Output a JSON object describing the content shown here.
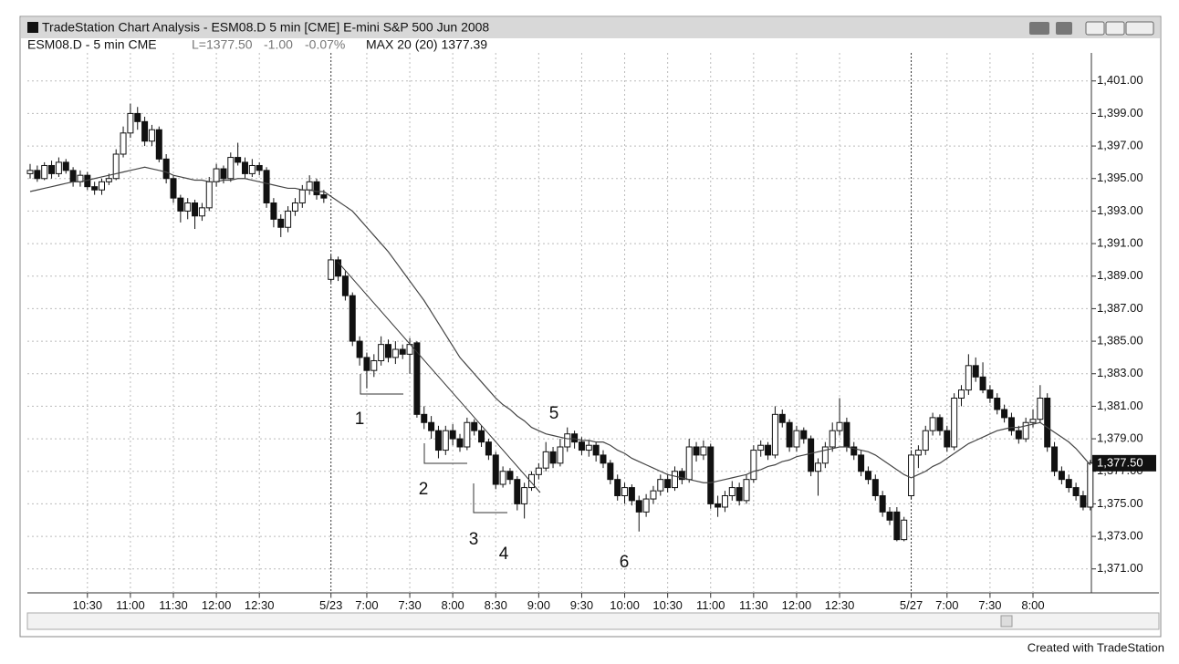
{
  "window": {
    "title": "TradeStation Chart Analysis - ESM08.D 5 min [CME] E-mini S&P 500 Jun 2008"
  },
  "footer": "Created with TradeStation",
  "chart_data": {
    "type": "candlestick",
    "symbol_label": "ESM08.D - 5 min CME",
    "last_label": "L=1377.50",
    "change_label": "-1.00",
    "change_pct_label": "-0.07%",
    "indicator_label": "MAX 20 (20) 1377.39",
    "last_price_label": "1,377.50",
    "categories": [
      null,
      null,
      null,
      null,
      null,
      null,
      null,
      null,
      "10:30",
      null,
      null,
      null,
      null,
      null,
      "11:00",
      null,
      null,
      null,
      null,
      null,
      "11:30",
      null,
      null,
      null,
      null,
      null,
      "12:00",
      null,
      null,
      null,
      null,
      null,
      "12:30",
      null,
      null,
      null,
      null,
      null,
      null,
      null,
      null,
      null,
      "5/23",
      null,
      null,
      null,
      null,
      "7:00",
      null,
      null,
      null,
      null,
      null,
      "7:30",
      null,
      null,
      null,
      null,
      null,
      "8:00",
      null,
      null,
      null,
      null,
      null,
      "8:30",
      null,
      null,
      null,
      null,
      null,
      "9:00",
      null,
      null,
      null,
      null,
      null,
      "9:30",
      null,
      null,
      null,
      null,
      null,
      "10:00",
      null,
      null,
      null,
      null,
      null,
      "10:30",
      null,
      null,
      null,
      null,
      null,
      "11:00",
      null,
      null,
      null,
      null,
      null,
      "11:30",
      null,
      null,
      null,
      null,
      null,
      "12:00",
      null,
      null,
      null,
      null,
      null,
      "12:30",
      null,
      null,
      null,
      null,
      null,
      null,
      null,
      null,
      null,
      "5/27",
      null,
      null,
      null,
      null,
      "7:00",
      null,
      null,
      null,
      null,
      null,
      "7:30",
      null,
      null,
      null,
      null,
      null,
      "8:00",
      null,
      null,
      null,
      null,
      null,
      null,
      null,
      null
    ],
    "ohlc": [
      [
        1395.3,
        1395.9,
        1395.0,
        1395.5
      ],
      [
        1395.5,
        1395.8,
        1394.8,
        1395.0
      ],
      [
        1395.0,
        1396.0,
        1394.9,
        1395.8
      ],
      [
        1395.8,
        1396.1,
        1395.0,
        1395.3
      ],
      [
        1395.3,
        1396.3,
        1395.1,
        1396.0
      ],
      [
        1396.0,
        1396.2,
        1395.3,
        1395.5
      ],
      [
        1395.5,
        1395.7,
        1394.5,
        1394.8
      ],
      [
        1394.8,
        1395.5,
        1394.5,
        1395.2
      ],
      [
        1395.2,
        1395.4,
        1394.3,
        1394.5
      ],
      [
        1394.5,
        1394.8,
        1394.0,
        1394.3
      ],
      [
        1394.3,
        1395.0,
        1394.0,
        1394.8
      ],
      [
        1394.8,
        1395.3,
        1394.6,
        1395.0
      ],
      [
        1395.0,
        1396.8,
        1394.9,
        1396.5
      ],
      [
        1396.5,
        1398.2,
        1396.3,
        1397.8
      ],
      [
        1397.8,
        1399.6,
        1397.5,
        1399.0
      ],
      [
        1399.0,
        1399.4,
        1398.0,
        1398.5
      ],
      [
        1398.5,
        1398.8,
        1397.0,
        1397.3
      ],
      [
        1397.3,
        1398.3,
        1397.0,
        1398.0
      ],
      [
        1398.0,
        1398.2,
        1396.0,
        1396.2
      ],
      [
        1396.2,
        1396.5,
        1394.7,
        1395.0
      ],
      [
        1395.0,
        1395.2,
        1393.5,
        1393.8
      ],
      [
        1393.8,
        1394.0,
        1392.3,
        1393.0
      ],
      [
        1393.0,
        1393.8,
        1392.5,
        1393.5
      ],
      [
        1393.5,
        1393.7,
        1391.9,
        1392.7
      ],
      [
        1392.7,
        1393.5,
        1392.4,
        1393.2
      ],
      [
        1393.2,
        1395.1,
        1393.0,
        1394.8
      ],
      [
        1394.8,
        1395.9,
        1394.5,
        1395.6
      ],
      [
        1395.6,
        1395.8,
        1394.7,
        1395.0
      ],
      [
        1395.0,
        1396.6,
        1394.8,
        1396.3
      ],
      [
        1396.3,
        1397.2,
        1395.8,
        1396.0
      ],
      [
        1396.0,
        1396.3,
        1395.0,
        1395.3
      ],
      [
        1395.3,
        1396.2,
        1395.1,
        1395.8
      ],
      [
        1395.8,
        1396.0,
        1395.2,
        1395.5
      ],
      [
        1395.5,
        1395.7,
        1393.2,
        1393.5
      ],
      [
        1393.5,
        1393.8,
        1392.0,
        1392.5
      ],
      [
        1392.5,
        1392.8,
        1391.4,
        1392.0
      ],
      [
        1392.0,
        1393.3,
        1391.7,
        1393.0
      ],
      [
        1393.0,
        1393.8,
        1392.7,
        1393.5
      ],
      [
        1393.5,
        1394.6,
        1393.2,
        1394.3
      ],
      [
        1394.3,
        1395.2,
        1394.0,
        1394.8
      ],
      [
        1394.8,
        1395.0,
        1393.7,
        1394.0
      ],
      [
        1394.0,
        1394.3,
        1393.5,
        1393.8
      ],
      [
        1388.8,
        1390.3,
        1388.6,
        1390.0
      ],
      [
        1390.0,
        1390.2,
        1388.7,
        1389.0
      ],
      [
        1389.0,
        1389.3,
        1387.5,
        1387.8
      ],
      [
        1387.8,
        1388.0,
        1384.7,
        1385.0
      ],
      [
        1385.0,
        1385.3,
        1383.5,
        1384.0
      ],
      [
        1384.0,
        1384.3,
        1382.1,
        1383.2
      ],
      [
        1383.2,
        1384.2,
        1382.8,
        1383.8
      ],
      [
        1383.8,
        1385.3,
        1383.5,
        1384.8
      ],
      [
        1384.8,
        1385.1,
        1383.7,
        1384.0
      ],
      [
        1384.0,
        1385.0,
        1383.6,
        1384.5
      ],
      [
        1384.5,
        1384.8,
        1383.9,
        1384.2
      ],
      [
        1384.2,
        1385.2,
        1383.0,
        1384.8
      ],
      [
        1384.9,
        1385.0,
        1380.3,
        1380.5
      ],
      [
        1380.5,
        1381.0,
        1379.6,
        1380.0
      ],
      [
        1380.0,
        1380.4,
        1379.0,
        1379.5
      ],
      [
        1379.5,
        1379.8,
        1377.8,
        1378.3
      ],
      [
        1378.3,
        1379.8,
        1378.0,
        1379.5
      ],
      [
        1379.5,
        1379.9,
        1378.6,
        1379.0
      ],
      [
        1379.0,
        1379.3,
        1378.2,
        1378.5
      ],
      [
        1378.5,
        1380.3,
        1378.3,
        1380.0
      ],
      [
        1380.0,
        1380.2,
        1379.2,
        1379.5
      ],
      [
        1379.5,
        1379.8,
        1378.5,
        1378.8
      ],
      [
        1378.8,
        1379.0,
        1377.7,
        1378.0
      ],
      [
        1378.0,
        1378.2,
        1375.9,
        1376.2
      ],
      [
        1376.2,
        1377.3,
        1376.0,
        1377.0
      ],
      [
        1377.0,
        1377.2,
        1376.2,
        1376.5
      ],
      [
        1376.5,
        1376.7,
        1374.6,
        1375.0
      ],
      [
        1375.0,
        1376.3,
        1374.1,
        1376.0
      ],
      [
        1376.0,
        1377.0,
        1375.8,
        1376.8
      ],
      [
        1376.8,
        1377.5,
        1376.5,
        1377.2
      ],
      [
        1377.2,
        1378.8,
        1377.0,
        1378.2
      ],
      [
        1378.2,
        1378.5,
        1377.2,
        1377.5
      ],
      [
        1377.5,
        1379.0,
        1377.3,
        1378.5
      ],
      [
        1378.5,
        1379.7,
        1378.2,
        1379.3
      ],
      [
        1379.3,
        1379.5,
        1378.4,
        1378.8
      ],
      [
        1378.8,
        1379.1,
        1378.0,
        1378.3
      ],
      [
        1378.3,
        1378.9,
        1377.9,
        1378.6
      ],
      [
        1378.6,
        1378.8,
        1377.6,
        1378.0
      ],
      [
        1378.0,
        1378.3,
        1377.2,
        1377.5
      ],
      [
        1377.5,
        1377.7,
        1376.2,
        1376.5
      ],
      [
        1376.5,
        1376.8,
        1375.2,
        1375.5
      ],
      [
        1375.5,
        1376.3,
        1375.0,
        1376.0
      ],
      [
        1376.0,
        1376.2,
        1374.9,
        1375.2
      ],
      [
        1375.2,
        1375.5,
        1373.3,
        1374.5
      ],
      [
        1374.5,
        1375.6,
        1374.2,
        1375.3
      ],
      [
        1375.3,
        1376.1,
        1375.0,
        1375.8
      ],
      [
        1375.8,
        1376.8,
        1375.5,
        1376.5
      ],
      [
        1376.5,
        1376.8,
        1375.7,
        1376.0
      ],
      [
        1376.0,
        1377.3,
        1375.8,
        1377.0
      ],
      [
        1377.0,
        1377.2,
        1376.2,
        1376.5
      ],
      [
        1376.5,
        1379.0,
        1376.3,
        1378.5
      ],
      [
        1378.5,
        1378.8,
        1377.6,
        1378.0
      ],
      [
        1378.0,
        1378.9,
        1377.7,
        1378.5
      ],
      [
        1378.5,
        1378.7,
        1374.7,
        1375.0
      ],
      [
        1375.0,
        1375.5,
        1374.2,
        1374.8
      ],
      [
        1374.8,
        1375.8,
        1374.5,
        1375.5
      ],
      [
        1375.5,
        1376.4,
        1375.2,
        1376.0
      ],
      [
        1376.0,
        1376.3,
        1374.9,
        1375.2
      ],
      [
        1375.2,
        1376.8,
        1375.0,
        1376.5
      ],
      [
        1376.5,
        1378.6,
        1376.3,
        1378.3
      ],
      [
        1378.3,
        1378.9,
        1377.9,
        1378.6
      ],
      [
        1378.6,
        1378.8,
        1377.7,
        1378.0
      ],
      [
        1378.0,
        1381.0,
        1377.8,
        1380.5
      ],
      [
        1380.5,
        1380.8,
        1379.7,
        1380.0
      ],
      [
        1380.0,
        1380.2,
        1378.2,
        1378.5
      ],
      [
        1378.5,
        1379.8,
        1378.2,
        1379.5
      ],
      [
        1379.5,
        1379.7,
        1378.7,
        1379.0
      ],
      [
        1379.0,
        1379.2,
        1376.7,
        1377.0
      ],
      [
        1377.0,
        1377.8,
        1375.5,
        1377.5
      ],
      [
        1377.5,
        1378.8,
        1377.2,
        1378.5
      ],
      [
        1378.5,
        1380.0,
        1378.2,
        1379.5
      ],
      [
        1379.5,
        1381.5,
        1379.2,
        1380.0
      ],
      [
        1380.0,
        1380.3,
        1378.2,
        1378.5
      ],
      [
        1378.5,
        1378.8,
        1377.7,
        1378.0
      ],
      [
        1378.0,
        1378.3,
        1376.7,
        1377.0
      ],
      [
        1377.0,
        1377.3,
        1376.2,
        1376.5
      ],
      [
        1376.5,
        1376.8,
        1375.2,
        1375.5
      ],
      [
        1375.5,
        1375.8,
        1374.2,
        1374.5
      ],
      [
        1374.5,
        1374.8,
        1373.7,
        1374.0
      ],
      [
        1374.5,
        1374.8,
        1372.7,
        1372.8
      ],
      [
        1372.8,
        1374.2,
        1372.7,
        1374.0
      ],
      [
        1375.5,
        1378.3,
        1375.3,
        1378.0
      ],
      [
        1378.0,
        1378.6,
        1377.2,
        1378.3
      ],
      [
        1378.3,
        1379.8,
        1378.0,
        1379.5
      ],
      [
        1379.5,
        1380.6,
        1379.2,
        1380.3
      ],
      [
        1380.3,
        1380.5,
        1379.2,
        1379.5
      ],
      [
        1379.5,
        1379.8,
        1378.2,
        1378.5
      ],
      [
        1378.5,
        1381.8,
        1378.3,
        1381.5
      ],
      [
        1381.5,
        1382.3,
        1381.0,
        1382.0
      ],
      [
        1382.0,
        1384.2,
        1381.7,
        1383.5
      ],
      [
        1383.5,
        1384.0,
        1382.5,
        1382.8
      ],
      [
        1382.8,
        1383.7,
        1381.8,
        1382.0
      ],
      [
        1382.0,
        1382.3,
        1381.2,
        1381.5
      ],
      [
        1381.5,
        1381.8,
        1380.5,
        1380.8
      ],
      [
        1380.8,
        1381.1,
        1380.0,
        1380.3
      ],
      [
        1380.3,
        1380.6,
        1379.2,
        1379.5
      ],
      [
        1379.5,
        1379.8,
        1378.7,
        1379.0
      ],
      [
        1379.0,
        1380.3,
        1378.8,
        1380.0
      ],
      [
        1380.0,
        1380.8,
        1379.7,
        1380.2
      ],
      [
        1380.2,
        1382.3,
        1380.0,
        1381.5
      ],
      [
        1381.5,
        1381.8,
        1378.2,
        1378.5
      ],
      [
        1378.5,
        1378.8,
        1376.7,
        1377.0
      ],
      [
        1377.0,
        1377.3,
        1376.2,
        1376.5
      ],
      [
        1376.5,
        1376.8,
        1375.7,
        1376.0
      ],
      [
        1376.0,
        1376.3,
        1375.2,
        1375.5
      ],
      [
        1375.5,
        1375.8,
        1374.6,
        1374.8
      ],
      [
        1374.8,
        1377.7,
        1374.6,
        1377.5
      ]
    ],
    "series": [
      {
        "name": "MAX 20 (20)",
        "color": "#444444",
        "values": [
          1394.2,
          1394.3,
          1394.4,
          1394.5,
          1394.6,
          1394.7,
          1394.8,
          1394.8,
          1394.9,
          1395.0,
          1395.1,
          1395.2,
          1395.3,
          1395.4,
          1395.5,
          1395.6,
          1395.7,
          1395.6,
          1395.5,
          1395.4,
          1395.2,
          1395.1,
          1395.0,
          1394.9,
          1394.9,
          1394.8,
          1394.8,
          1394.9,
          1394.9,
          1395.0,
          1395.0,
          1394.9,
          1394.8,
          1394.7,
          1394.6,
          1394.5,
          1394.4,
          1394.4,
          1394.3,
          1394.3,
          1394.2,
          1394.2,
          1393.9,
          1393.6,
          1393.3,
          1393.0,
          1392.5,
          1392.0,
          1391.5,
          1391.0,
          1390.5,
          1389.9,
          1389.3,
          1388.7,
          1388.1,
          1387.5,
          1386.8,
          1386.1,
          1385.4,
          1384.7,
          1384.0,
          1383.5,
          1383.0,
          1382.5,
          1382.0,
          1381.5,
          1381.1,
          1380.8,
          1380.4,
          1380.1,
          1379.7,
          1379.5,
          1379.3,
          1379.2,
          1379.1,
          1379.0,
          1379.0,
          1378.9,
          1378.9,
          1378.8,
          1378.8,
          1378.6,
          1378.3,
          1378.1,
          1377.8,
          1377.6,
          1377.4,
          1377.2,
          1377.0,
          1376.8,
          1376.7,
          1376.6,
          1376.5,
          1376.4,
          1376.3,
          1376.3,
          1376.4,
          1376.5,
          1376.6,
          1376.7,
          1376.8,
          1377.0,
          1377.1,
          1377.3,
          1377.4,
          1377.6,
          1377.7,
          1377.9,
          1378.0,
          1378.1,
          1378.2,
          1378.3,
          1378.4,
          1378.5,
          1378.5,
          1378.4,
          1378.3,
          1378.2,
          1378.0,
          1377.7,
          1377.4,
          1377.1,
          1376.8,
          1376.6,
          1376.8,
          1377.0,
          1377.3,
          1377.5,
          1377.8,
          1378.1,
          1378.4,
          1378.7,
          1378.9,
          1379.1,
          1379.3,
          1379.5,
          1379.6,
          1379.7,
          1379.7,
          1379.8,
          1379.9,
          1380.0,
          1379.7,
          1379.4,
          1379.1,
          1378.8,
          1378.4,
          1377.9,
          1377.39
        ]
      }
    ],
    "ylim": [
      1369.5,
      1402.5
    ],
    "yticks": [
      {
        "value": 1371,
        "label": "1,371.00"
      },
      {
        "value": 1373,
        "label": "1,373.00"
      },
      {
        "value": 1375,
        "label": "1,375.00"
      },
      {
        "value": 1377,
        "label": "1,377.00"
      },
      {
        "value": 1379,
        "label": "1,379.00"
      },
      {
        "value": 1381,
        "label": "1,381.00"
      },
      {
        "value": 1383,
        "label": "1,383.00"
      },
      {
        "value": 1385,
        "label": "1,385.00"
      },
      {
        "value": 1387,
        "label": "1,387.00"
      },
      {
        "value": 1389,
        "label": "1,389.00"
      },
      {
        "value": 1391,
        "label": "1,391.00"
      },
      {
        "value": 1393,
        "label": "1,393.00"
      },
      {
        "value": 1395,
        "label": "1,395.00"
      },
      {
        "value": 1397,
        "label": "1,397.00"
      },
      {
        "value": 1399,
        "label": "1,399.00"
      },
      {
        "value": 1401,
        "label": "1,401.00"
      }
    ],
    "grid": true,
    "annotations": [
      "1",
      "2",
      "3",
      "4",
      "5",
      "6"
    ]
  }
}
